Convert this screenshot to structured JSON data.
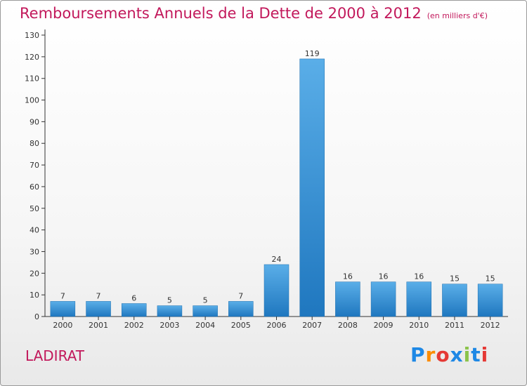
{
  "header": {
    "title": "Remboursements Annuels de la Dette de 2000 à 2012",
    "unit": "(en milliers d'€)"
  },
  "footer": {
    "city": "LADIRAT",
    "logo_letters": [
      "P",
      "r",
      "o",
      "x",
      "i",
      "t",
      "i"
    ]
  },
  "colors": {
    "title": "#c2185b",
    "bar_light": "#5aaee8",
    "bar_dark": "#1f77bf"
  },
  "chart_data": {
    "type": "bar",
    "title": "Remboursements Annuels de la Dette de 2000 à 2012",
    "categories": [
      "2000",
      "2001",
      "2002",
      "2003",
      "2004",
      "2005",
      "2006",
      "2007",
      "2008",
      "2009",
      "2010",
      "2011",
      "2012"
    ],
    "values": [
      7,
      7,
      6,
      5,
      5,
      7,
      24,
      119,
      16,
      16,
      16,
      15,
      15
    ],
    "ylim": [
      0,
      130
    ],
    "yticks": [
      0,
      10,
      20,
      30,
      40,
      50,
      60,
      70,
      80,
      90,
      100,
      110,
      120,
      130
    ],
    "grid": false,
    "legend": "none"
  }
}
